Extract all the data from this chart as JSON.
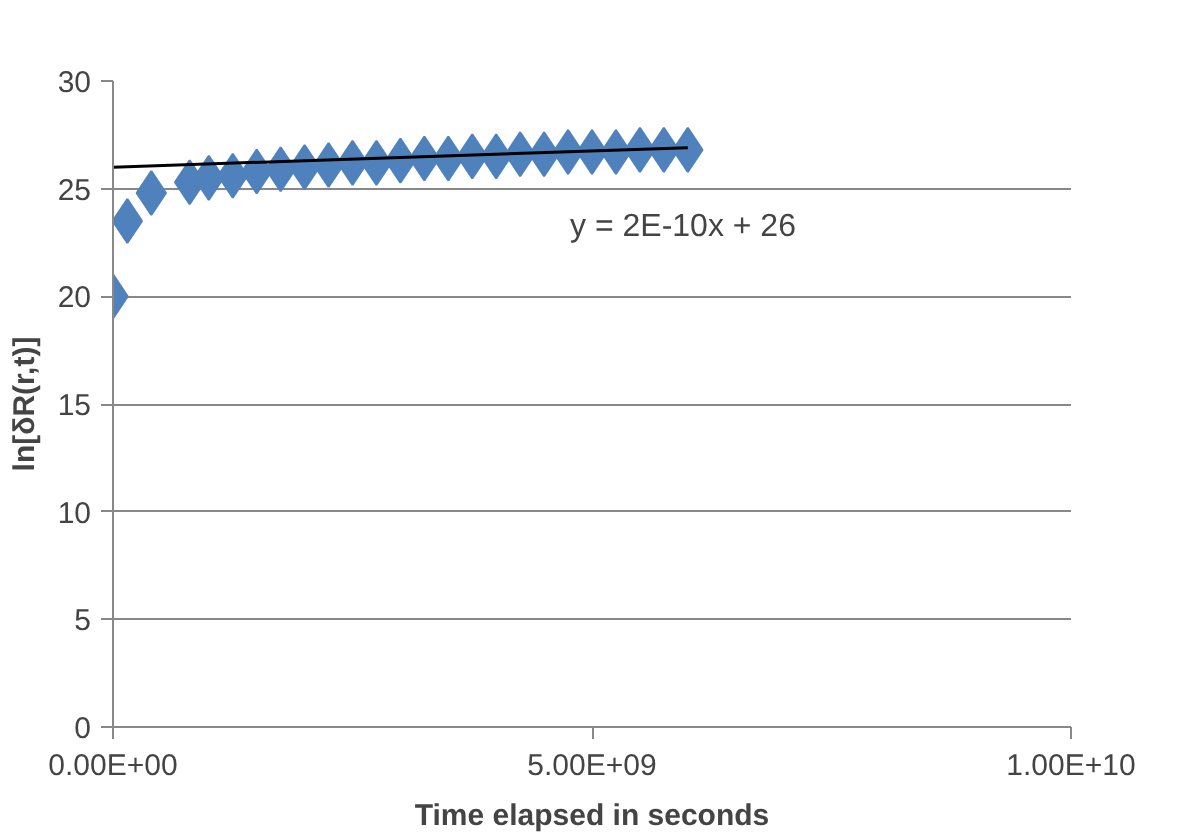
{
  "chart_data": {
    "type": "scatter",
    "xlabel": "Time elapsed in seconds",
    "ylabel": "ln[δR(r,t)]",
    "xlim": [
      0,
      10000000000
    ],
    "xticks": [
      {
        "value": 0,
        "label": "0.00E+00"
      },
      {
        "value": 5000000000,
        "label": "5.00E+09"
      },
      {
        "value": 10000000000,
        "label": "1.00E+10"
      }
    ],
    "ylim": [
      0,
      30
    ],
    "yticks": [
      0,
      5,
      10,
      15,
      20,
      25,
      30
    ],
    "grid": "y",
    "series": [
      {
        "color": "#4f81bd",
        "marker": "diamond",
        "x": [
          0,
          150000000,
          400000000,
          800000000,
          1000000000,
          1250000000,
          1500000000,
          1750000000,
          2000000000,
          2250000000,
          2500000000,
          2750000000,
          3000000000,
          3250000000,
          3500000000,
          3750000000,
          4000000000,
          4250000000,
          4500000000,
          4750000000,
          5000000000,
          5250000000,
          5500000000,
          5750000000,
          6000000000
        ],
        "values": [
          20,
          23.5,
          24.8,
          25.3,
          25.5,
          25.6,
          25.8,
          25.9,
          26,
          26.1,
          26.2,
          26.2,
          26.3,
          26.4,
          26.4,
          26.5,
          26.5,
          26.6,
          26.6,
          26.7,
          26.7,
          26.7,
          26.8,
          26.8,
          26.8
        ]
      },
      {
        "type": "line",
        "color": "#000000",
        "marker": "none",
        "x": [
          0,
          6000000000
        ],
        "values": [
          26,
          26.9
        ]
      }
    ],
    "annotations": [
      "y = 2E-10x + 26"
    ]
  }
}
